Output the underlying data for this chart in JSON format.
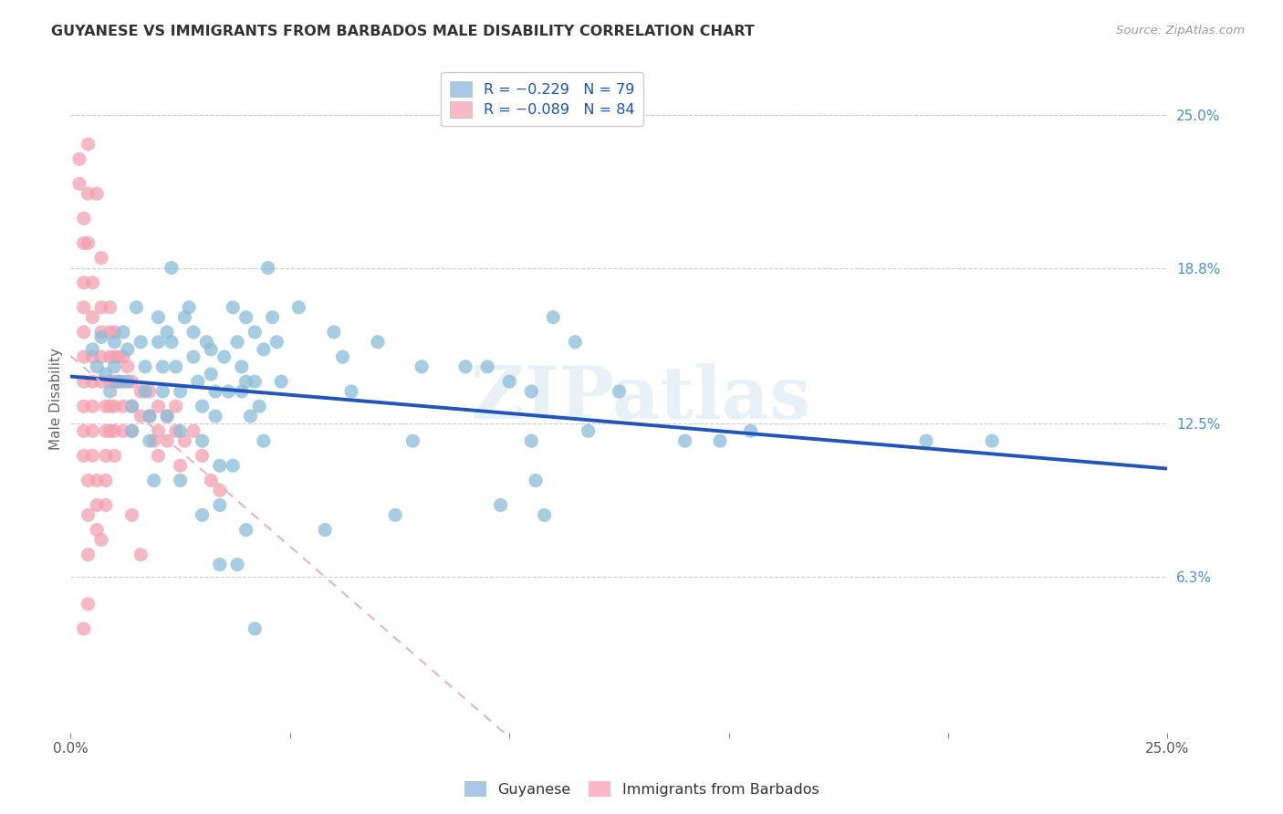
{
  "title": "GUYANESE VS IMMIGRANTS FROM BARBADOS MALE DISABILITY CORRELATION CHART",
  "source": "Source: ZipAtlas.com",
  "ylabel_label": "Male Disability",
  "right_ytick_vals": [
    0.063,
    0.125,
    0.188,
    0.25
  ],
  "right_ytick_labels": [
    "6.3%",
    "12.5%",
    "18.8%",
    "25.0%"
  ],
  "xlim": [
    0.0,
    0.25
  ],
  "ylim": [
    0.0,
    0.27
  ],
  "watermark_text": "ZIPatlas",
  "blue_color": "#89bdd8",
  "pink_color": "#f4a0b0",
  "blue_line_color": "#2255bb",
  "pink_line_color": "#e8b4c0",
  "background_color": "#ffffff",
  "guyanese_points": [
    [
      0.005,
      0.155
    ],
    [
      0.006,
      0.148
    ],
    [
      0.007,
      0.16
    ],
    [
      0.008,
      0.145
    ],
    [
      0.009,
      0.138
    ],
    [
      0.01,
      0.158
    ],
    [
      0.01,
      0.148
    ],
    [
      0.011,
      0.142
    ],
    [
      0.012,
      0.162
    ],
    [
      0.013,
      0.155
    ],
    [
      0.013,
      0.142
    ],
    [
      0.014,
      0.132
    ],
    [
      0.014,
      0.122
    ],
    [
      0.015,
      0.172
    ],
    [
      0.016,
      0.158
    ],
    [
      0.017,
      0.148
    ],
    [
      0.017,
      0.138
    ],
    [
      0.018,
      0.128
    ],
    [
      0.018,
      0.118
    ],
    [
      0.019,
      0.102
    ],
    [
      0.02,
      0.168
    ],
    [
      0.02,
      0.158
    ],
    [
      0.021,
      0.148
    ],
    [
      0.021,
      0.138
    ],
    [
      0.022,
      0.128
    ],
    [
      0.022,
      0.162
    ],
    [
      0.023,
      0.188
    ],
    [
      0.023,
      0.158
    ],
    [
      0.024,
      0.148
    ],
    [
      0.025,
      0.138
    ],
    [
      0.025,
      0.122
    ],
    [
      0.025,
      0.102
    ],
    [
      0.026,
      0.168
    ],
    [
      0.027,
      0.172
    ],
    [
      0.028,
      0.162
    ],
    [
      0.028,
      0.152
    ],
    [
      0.029,
      0.142
    ],
    [
      0.03,
      0.132
    ],
    [
      0.03,
      0.118
    ],
    [
      0.03,
      0.088
    ],
    [
      0.031,
      0.158
    ],
    [
      0.032,
      0.155
    ],
    [
      0.032,
      0.145
    ],
    [
      0.033,
      0.138
    ],
    [
      0.033,
      0.128
    ],
    [
      0.034,
      0.108
    ],
    [
      0.034,
      0.092
    ],
    [
      0.035,
      0.152
    ],
    [
      0.036,
      0.138
    ],
    [
      0.037,
      0.172
    ],
    [
      0.038,
      0.158
    ],
    [
      0.039,
      0.148
    ],
    [
      0.039,
      0.138
    ],
    [
      0.04,
      0.168
    ],
    [
      0.04,
      0.142
    ],
    [
      0.041,
      0.128
    ],
    [
      0.042,
      0.162
    ],
    [
      0.042,
      0.142
    ],
    [
      0.043,
      0.132
    ],
    [
      0.044,
      0.155
    ],
    [
      0.045,
      0.188
    ],
    [
      0.046,
      0.168
    ],
    [
      0.047,
      0.158
    ],
    [
      0.048,
      0.142
    ],
    [
      0.052,
      0.172
    ],
    [
      0.06,
      0.162
    ],
    [
      0.062,
      0.152
    ],
    [
      0.064,
      0.138
    ],
    [
      0.07,
      0.158
    ],
    [
      0.08,
      0.148
    ],
    [
      0.09,
      0.148
    ],
    [
      0.095,
      0.148
    ],
    [
      0.1,
      0.142
    ],
    [
      0.11,
      0.168
    ],
    [
      0.115,
      0.158
    ],
    [
      0.125,
      0.138
    ],
    [
      0.14,
      0.118
    ],
    [
      0.148,
      0.118
    ],
    [
      0.155,
      0.122
    ],
    [
      0.195,
      0.118
    ],
    [
      0.21,
      0.118
    ],
    [
      0.105,
      0.138
    ],
    [
      0.038,
      0.068
    ],
    [
      0.042,
      0.042
    ],
    [
      0.105,
      0.118
    ],
    [
      0.044,
      0.118
    ],
    [
      0.034,
      0.068
    ],
    [
      0.078,
      0.118
    ],
    [
      0.106,
      0.102
    ],
    [
      0.037,
      0.108
    ],
    [
      0.04,
      0.082
    ],
    [
      0.058,
      0.082
    ],
    [
      0.118,
      0.122
    ],
    [
      0.074,
      0.088
    ],
    [
      0.098,
      0.092
    ],
    [
      0.108,
      0.088
    ]
  ],
  "barbados_points": [
    [
      0.002,
      0.232
    ],
    [
      0.002,
      0.222
    ],
    [
      0.003,
      0.208
    ],
    [
      0.003,
      0.198
    ],
    [
      0.003,
      0.182
    ],
    [
      0.003,
      0.172
    ],
    [
      0.003,
      0.162
    ],
    [
      0.003,
      0.152
    ],
    [
      0.003,
      0.142
    ],
    [
      0.003,
      0.132
    ],
    [
      0.003,
      0.122
    ],
    [
      0.003,
      0.112
    ],
    [
      0.004,
      0.102
    ],
    [
      0.004,
      0.088
    ],
    [
      0.004,
      0.072
    ],
    [
      0.004,
      0.052
    ],
    [
      0.004,
      0.238
    ],
    [
      0.004,
      0.218
    ],
    [
      0.004,
      0.198
    ],
    [
      0.005,
      0.182
    ],
    [
      0.005,
      0.168
    ],
    [
      0.005,
      0.152
    ],
    [
      0.005,
      0.142
    ],
    [
      0.005,
      0.132
    ],
    [
      0.005,
      0.122
    ],
    [
      0.005,
      0.112
    ],
    [
      0.006,
      0.102
    ],
    [
      0.006,
      0.092
    ],
    [
      0.006,
      0.082
    ],
    [
      0.006,
      0.218
    ],
    [
      0.007,
      0.192
    ],
    [
      0.007,
      0.172
    ],
    [
      0.007,
      0.162
    ],
    [
      0.007,
      0.152
    ],
    [
      0.007,
      0.142
    ],
    [
      0.008,
      0.132
    ],
    [
      0.008,
      0.122
    ],
    [
      0.008,
      0.112
    ],
    [
      0.008,
      0.102
    ],
    [
      0.008,
      0.092
    ],
    [
      0.009,
      0.172
    ],
    [
      0.009,
      0.162
    ],
    [
      0.009,
      0.152
    ],
    [
      0.009,
      0.142
    ],
    [
      0.009,
      0.132
    ],
    [
      0.009,
      0.122
    ],
    [
      0.01,
      0.162
    ],
    [
      0.01,
      0.152
    ],
    [
      0.01,
      0.142
    ],
    [
      0.01,
      0.132
    ],
    [
      0.01,
      0.122
    ],
    [
      0.01,
      0.112
    ],
    [
      0.011,
      0.152
    ],
    [
      0.011,
      0.142
    ],
    [
      0.012,
      0.152
    ],
    [
      0.012,
      0.142
    ],
    [
      0.012,
      0.132
    ],
    [
      0.012,
      0.122
    ],
    [
      0.013,
      0.148
    ],
    [
      0.014,
      0.142
    ],
    [
      0.014,
      0.132
    ],
    [
      0.014,
      0.122
    ],
    [
      0.016,
      0.138
    ],
    [
      0.016,
      0.128
    ],
    [
      0.018,
      0.138
    ],
    [
      0.018,
      0.128
    ],
    [
      0.019,
      0.118
    ],
    [
      0.02,
      0.132
    ],
    [
      0.02,
      0.122
    ],
    [
      0.02,
      0.112
    ],
    [
      0.022,
      0.128
    ],
    [
      0.022,
      0.118
    ],
    [
      0.024,
      0.132
    ],
    [
      0.024,
      0.122
    ],
    [
      0.025,
      0.108
    ],
    [
      0.026,
      0.118
    ],
    [
      0.028,
      0.122
    ],
    [
      0.03,
      0.112
    ],
    [
      0.032,
      0.102
    ],
    [
      0.034,
      0.098
    ],
    [
      0.003,
      0.042
    ],
    [
      0.014,
      0.088
    ],
    [
      0.016,
      0.072
    ],
    [
      0.007,
      0.078
    ]
  ]
}
